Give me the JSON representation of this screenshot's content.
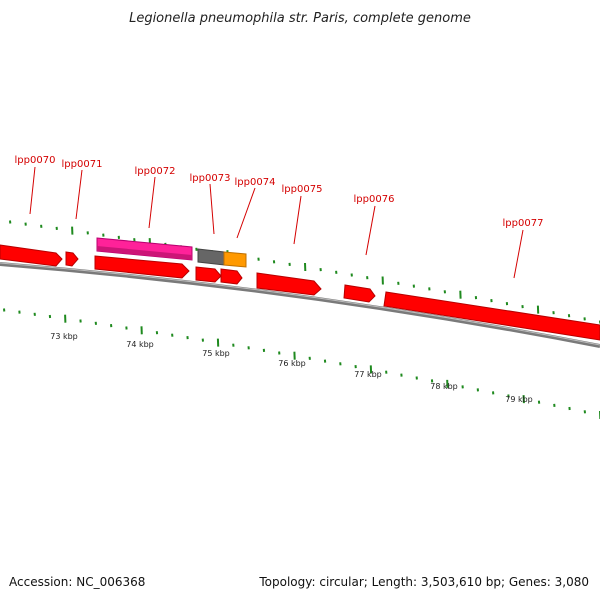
{
  "title": "Legionella pneumophila str. Paris, complete genome",
  "footer": {
    "accession": "Accession: NC_006368",
    "summary": "Topology: circular; Length: 3,503,610 bp; Genes: 3,080"
  },
  "colors": {
    "gene": "#ff0000",
    "gene_dark": "#b80000",
    "pink_feature": "#ff2299",
    "gray_feature": "#666666",
    "orange_feature": "#ff9900",
    "backbone": "#7a7a7a",
    "tick": "#1f8a1f",
    "label": "#d40000"
  },
  "genes": [
    "lpp0070",
    "lpp0071",
    "lpp0072",
    "lpp0073",
    "lpp0074",
    "lpp0075",
    "lpp0076",
    "lpp0077"
  ],
  "ticks": [
    "73 kbp",
    "74 kbp",
    "75 kbp",
    "76 kbp",
    "77 kbp",
    "78 kbp",
    "79 kbp"
  ]
}
